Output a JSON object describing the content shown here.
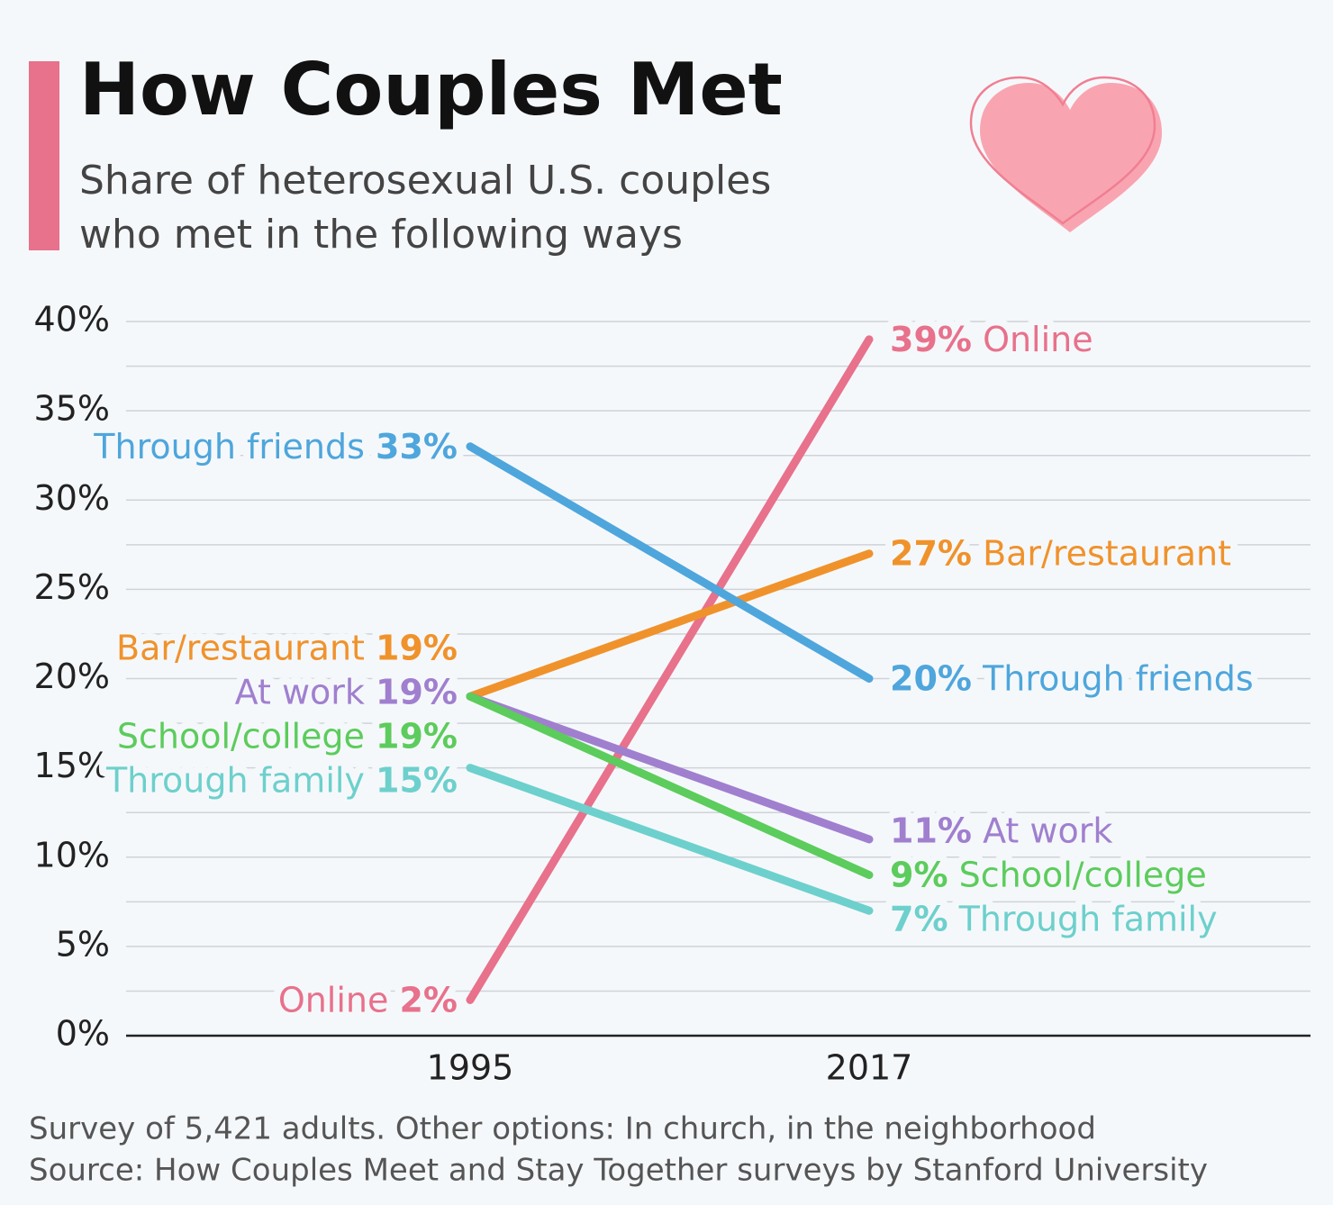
{
  "chart_data": {
    "type": "slope",
    "title": "How Couples Met",
    "subtitle": [
      "Share of heterosexual U.S. couples",
      "who met in the following ways"
    ],
    "categories": [
      "1995",
      "2017"
    ],
    "series": [
      {
        "name": "Online",
        "color": "#e8718b",
        "values": [
          2,
          39
        ],
        "value_labels": [
          "2%",
          "39%"
        ]
      },
      {
        "name": "Bar/restaurant",
        "color": "#f0922b",
        "values": [
          19,
          27
        ],
        "value_labels": [
          "19%",
          "27%"
        ]
      },
      {
        "name": "Through friends",
        "color": "#4ea6dc",
        "values": [
          33,
          20
        ],
        "value_labels": [
          "33%",
          "20%"
        ]
      },
      {
        "name": "At work",
        "color": "#a07fcf",
        "values": [
          19,
          11
        ],
        "value_labels": [
          "19%",
          "11%"
        ]
      },
      {
        "name": "School/college",
        "color": "#5ccc5c",
        "values": [
          19,
          9
        ],
        "value_labels": [
          "19%",
          "9%"
        ]
      },
      {
        "name": "Through family",
        "color": "#6dd0cc",
        "values": [
          15,
          7
        ],
        "value_labels": [
          "15%",
          "7%"
        ]
      }
    ],
    "ylim": [
      0,
      40
    ],
    "yticks": [
      {
        "value": 0,
        "label": "0%"
      },
      {
        "value": 5,
        "label": "5%"
      },
      {
        "value": 10,
        "label": "10%"
      },
      {
        "value": 15,
        "label": "15%"
      },
      {
        "value": 20,
        "label": "20%"
      },
      {
        "value": 25,
        "label": "25%"
      },
      {
        "value": 30,
        "label": "30%"
      },
      {
        "value": 35,
        "label": "35%"
      },
      {
        "value": 40,
        "label": "40%"
      }
    ],
    "yminorticks": [
      2.5,
      7.5,
      12.5,
      17.5,
      22.5,
      27.5,
      32.5,
      37.5
    ],
    "grid": true,
    "notes": [
      "Survey of 5,421 adults. Other options: In church, in the neighborhood",
      "Source: How Couples Meet and Stay Together surveys by Stanford University"
    ]
  }
}
